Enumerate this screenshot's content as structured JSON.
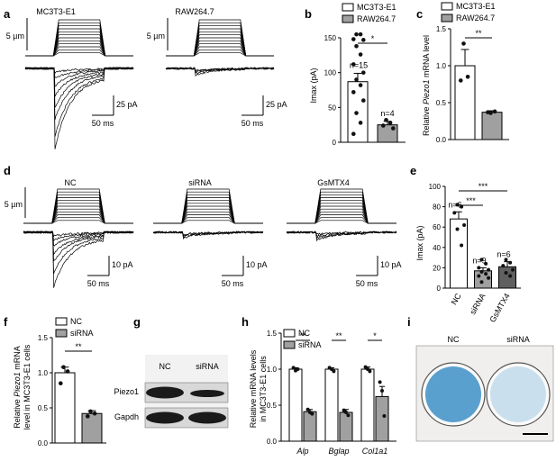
{
  "panels": {
    "a": {
      "letter": "a",
      "titles": [
        "MC3T3-E1",
        "RAW264.7"
      ],
      "stim_scale": "5 µm",
      "scale_y": [
        "25 pA",
        "25 pA"
      ],
      "scale_x": [
        "50 ms",
        "50 ms"
      ]
    },
    "b": {
      "letter": "b",
      "ylabel": "Imax (pA)",
      "yticks": [
        "0",
        "50",
        "100",
        "150"
      ],
      "legend": [
        "MC3T3-E1",
        "RAW264.7"
      ],
      "n": [
        "n=15",
        "n=4"
      ],
      "sig": "*"
    },
    "c": {
      "letter": "c",
      "ylabel_pre": "Relative ",
      "ylabel_gene": "Piezo1",
      "ylabel_post": " mRNA level",
      "yticks": [
        "0.0",
        "0.5",
        "1.0",
        "1.5"
      ],
      "legend": [
        "MC3T3-E1",
        "RAW264.7"
      ],
      "sig": "**"
    },
    "d": {
      "letter": "d",
      "titles": [
        "NC",
        "siRNA",
        "GsMTX4"
      ],
      "stim_scale": "5 µm",
      "scale_y": [
        "10 pA",
        "10 pA",
        "10 pA"
      ],
      "scale_x": [
        "50 ms",
        "50 ms",
        "50 ms"
      ]
    },
    "e": {
      "letter": "e",
      "ylabel": "Imax (pA)",
      "yticks": [
        "0",
        "20",
        "40",
        "60",
        "80",
        "100"
      ],
      "categories": [
        "NC",
        "siRNA",
        "GsMTX4"
      ],
      "n": [
        "n=6",
        "n=9",
        "n=6"
      ],
      "sig": [
        "***",
        "***"
      ]
    },
    "f": {
      "letter": "f",
      "ylabel_line1_pre": "Relative ",
      "ylabel_line1_gene": "Piezo1",
      "ylabel_line1_post": " mRNA",
      "ylabel_line2": "level in MC3T3-E1 cells",
      "yticks": [
        "0.0",
        "0.5",
        "1.0",
        "1.5"
      ],
      "legend": [
        "NC",
        "siRNA"
      ],
      "sig": "**"
    },
    "g": {
      "letter": "g",
      "lanes": [
        "NC",
        "siRNA"
      ],
      "rows": [
        "Piezo1",
        "Gapdh"
      ]
    },
    "h": {
      "letter": "h",
      "ylabel_line1": "Relative mRNA levels",
      "ylabel_line2": "in MC3T3-E1 cells",
      "yticks": [
        "0.0",
        "0.5",
        "1.0",
        "1.5"
      ],
      "legend": [
        "NC",
        "siRNA"
      ],
      "genes": [
        "Alp",
        "Bglap",
        "Col1a1"
      ],
      "sig": [
        "**",
        "**",
        "*"
      ]
    },
    "i": {
      "letter": "i",
      "labels": [
        "NC",
        "siRNA"
      ]
    }
  },
  "chart_data": [
    {
      "type": "bar",
      "panel": "b",
      "categories": [
        "MC3T3-E1",
        "RAW264.7"
      ],
      "values": [
        87,
        25
      ],
      "errors": [
        12,
        5
      ],
      "ylim": [
        0,
        150
      ],
      "ylabel": "Imax (pA)",
      "points": [
        [
          155,
          155,
          148,
          147,
          138,
          126,
          112,
          100,
          90,
          82,
          72,
          60,
          42,
          28,
          12
        ],
        [
          32,
          28,
          24,
          20
        ]
      ]
    },
    {
      "type": "bar",
      "panel": "c",
      "categories": [
        "MC3T3-E1",
        "RAW264.7"
      ],
      "values": [
        1.0,
        0.37
      ],
      "errors": [
        0.22,
        0.02
      ],
      "ylim": [
        0,
        1.5
      ],
      "ylabel": "Relative Piezo1 mRNA level",
      "points": [
        [
          1.3,
          0.85,
          0.8
        ],
        [
          0.36,
          0.38,
          0.37
        ]
      ]
    },
    {
      "type": "bar",
      "panel": "e",
      "categories": [
        "NC",
        "siRNA",
        "GsMTX4"
      ],
      "values": [
        68,
        17,
        21
      ],
      "errors": [
        7,
        3,
        5
      ],
      "ylim": [
        0,
        100
      ],
      "ylabel": "Imax (pA)",
      "points": [
        [
          82,
          80,
          74,
          62,
          58,
          42
        ],
        [
          28,
          24,
          20,
          18,
          16,
          14,
          12,
          10,
          6
        ],
        [
          28,
          25,
          22,
          18,
          15,
          12
        ]
      ]
    },
    {
      "type": "bar",
      "panel": "f",
      "categories": [
        "NC",
        "siRNA"
      ],
      "values": [
        1.0,
        0.42
      ],
      "errors": [
        0.08,
        0.04
      ],
      "ylim": [
        0,
        1.5
      ],
      "ylabel": "Relative Piezo1 mRNA level in MC3T3-E1 cells",
      "points": [
        [
          1.08,
          1.02,
          0.85
        ],
        [
          0.45,
          0.42,
          0.38
        ]
      ]
    },
    {
      "type": "bar",
      "panel": "h",
      "categories": [
        "Alp",
        "Bglap",
        "Col1a1"
      ],
      "series": [
        {
          "name": "NC",
          "values": [
            1.0,
            1.0,
            1.0
          ],
          "errors": [
            0.02,
            0.02,
            0.03
          ]
        },
        {
          "name": "siRNA",
          "values": [
            0.41,
            0.4,
            0.62
          ],
          "errors": [
            0.03,
            0.04,
            0.14
          ]
        }
      ],
      "ylim": [
        0,
        1.5
      ],
      "ylabel": "Relative mRNA levels in MC3T3-E1 cells",
      "points": [
        [
          [
            1.02,
            0.98,
            1.0
          ],
          [
            0.44,
            0.4,
            0.38
          ]
        ],
        [
          [
            1.02,
            1.0,
            0.97
          ],
          [
            0.43,
            0.4,
            0.36
          ]
        ],
        [
          [
            1.03,
            1.0,
            0.97
          ],
          [
            0.82,
            0.7,
            0.35
          ]
        ]
      ]
    }
  ],
  "colors": {
    "bar_a": "#ffffff",
    "bar_b": "#a0a0a0",
    "blot": "#1a1a1a",
    "stain": "#3d8fc6"
  }
}
